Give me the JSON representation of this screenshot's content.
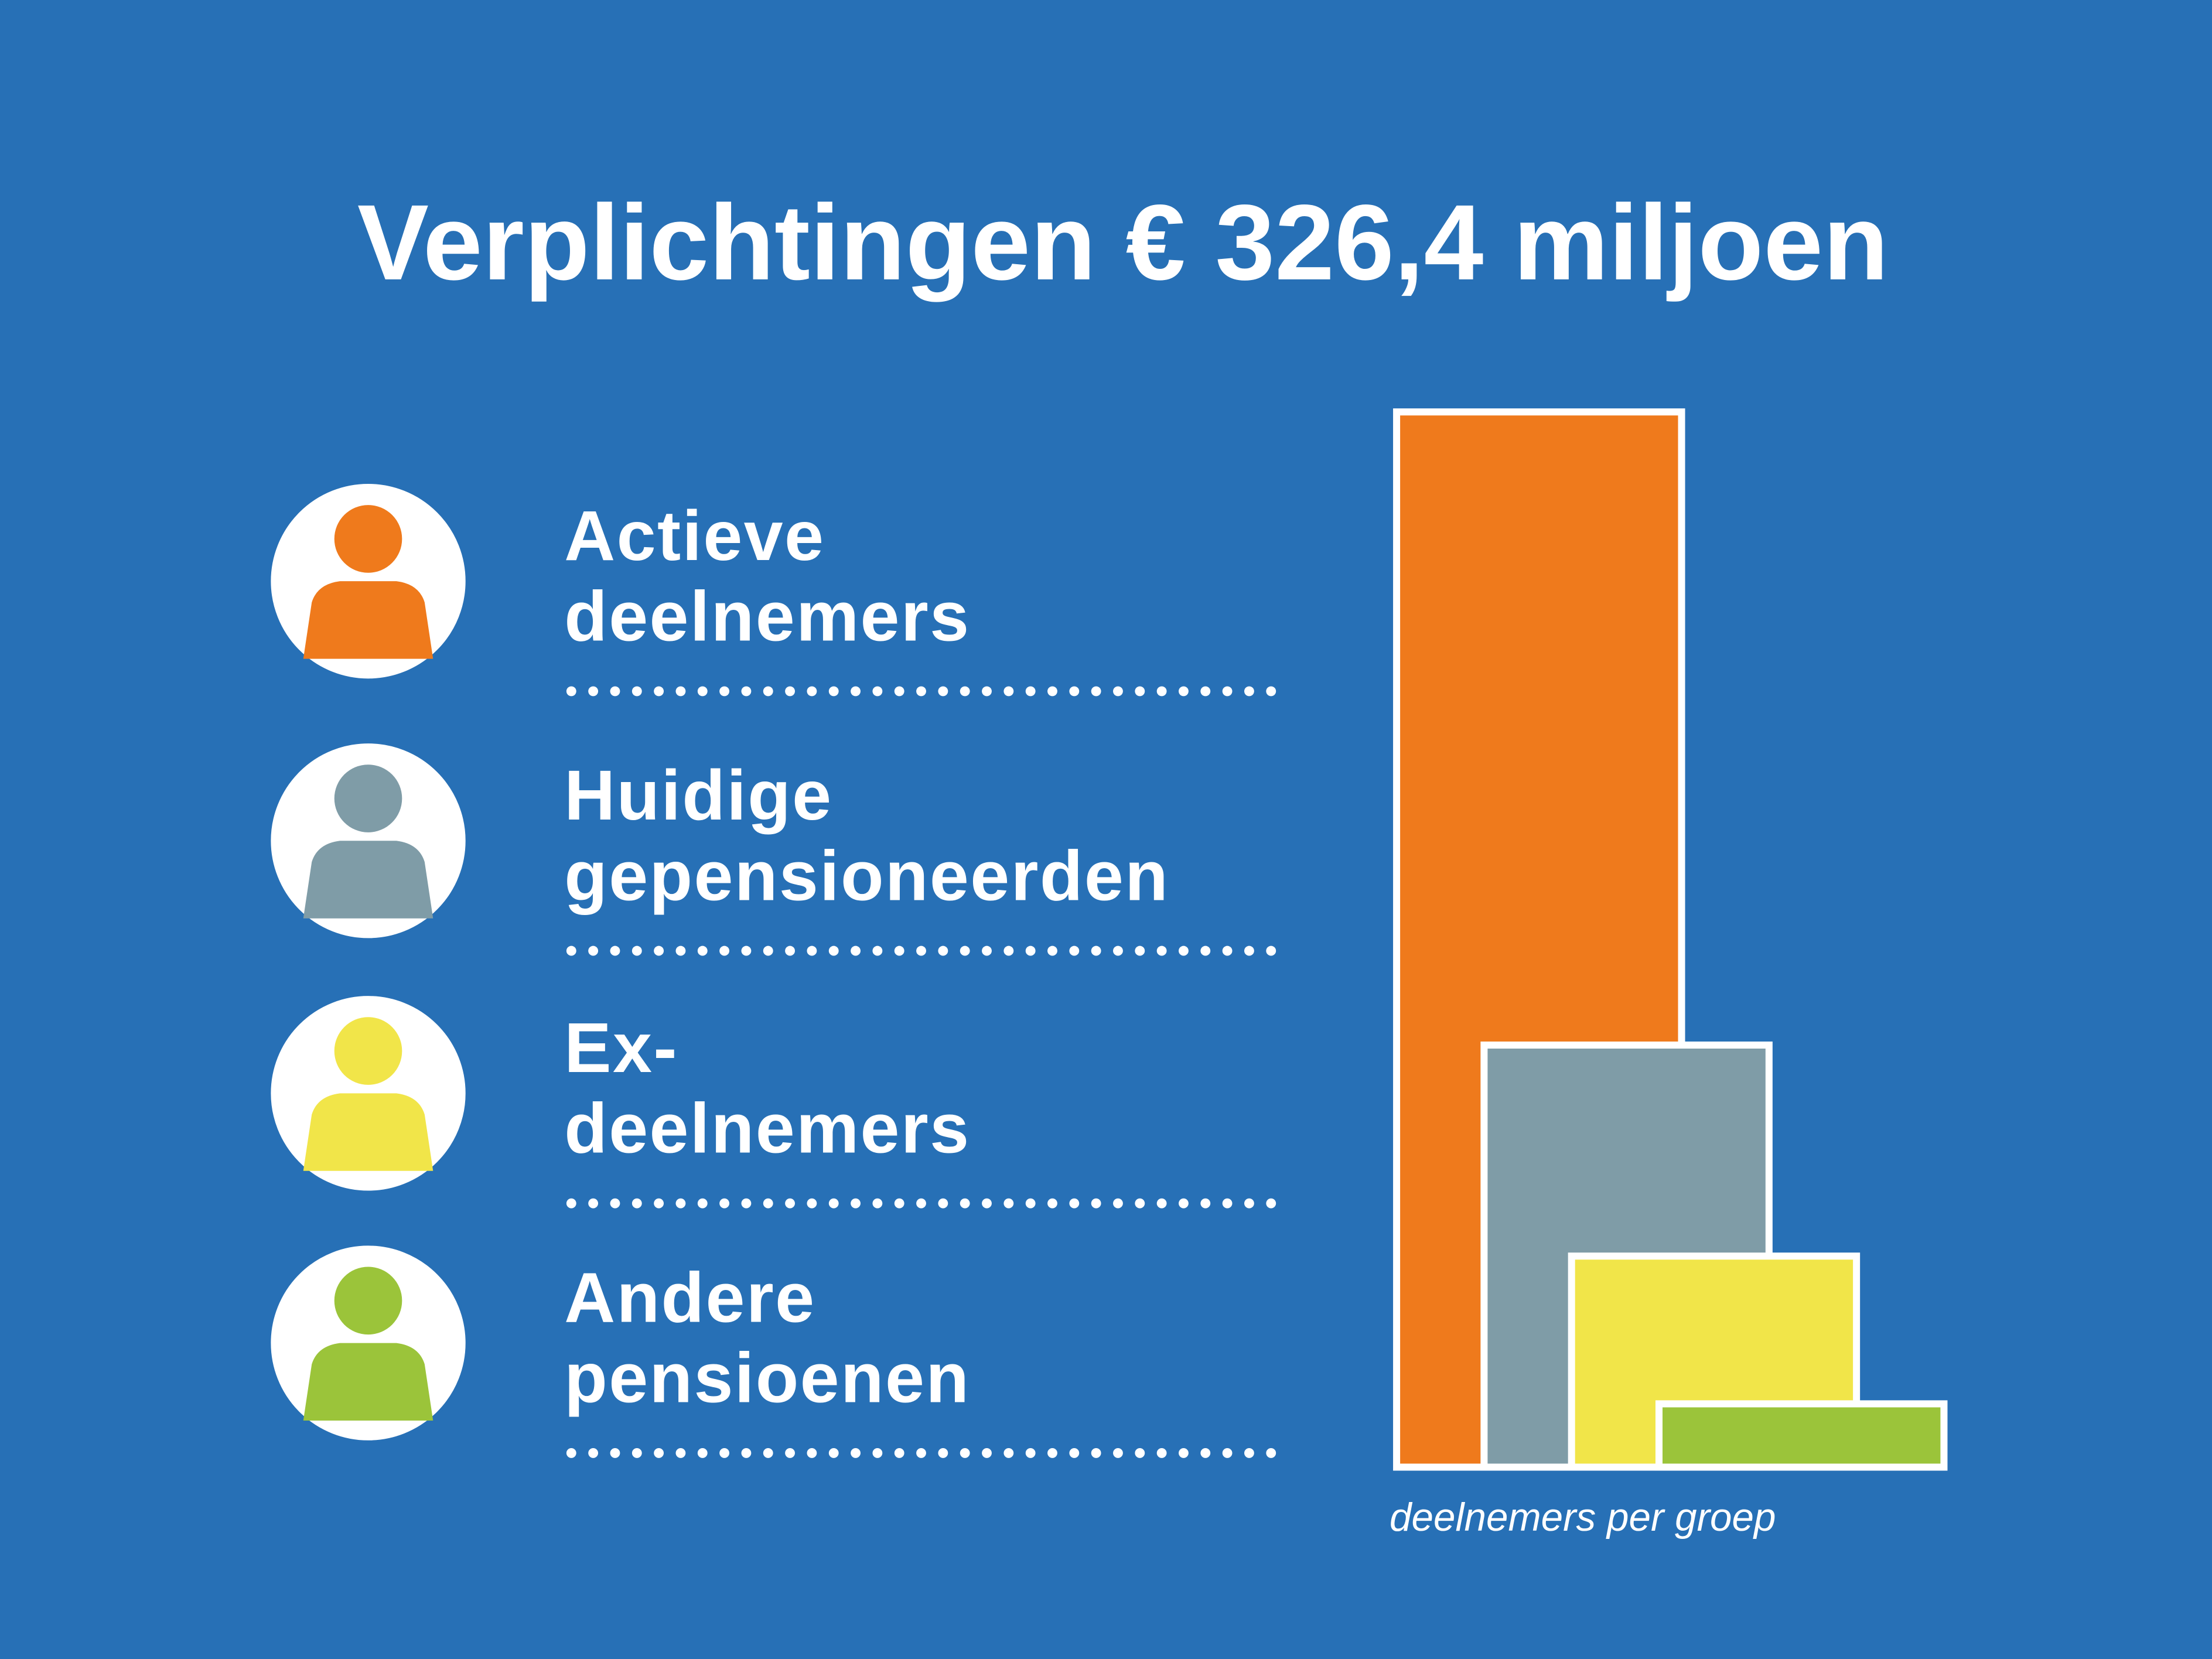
{
  "chart_data": {
    "type": "bar",
    "title": "Verplichtingen  € 326,4 miljoen",
    "categories": [
      [
        "Actieve",
        "deelnemers"
      ],
      [
        "Huidige",
        "gepensioneerden"
      ],
      [
        "Ex-",
        "deelnemers"
      ],
      [
        "Andere",
        "pensioenen"
      ]
    ],
    "values": [
      100,
      40,
      20,
      6
    ],
    "colors": [
      "#ef7a1c",
      "#7f9ca7",
      "#f1e549",
      "#9bc43a"
    ],
    "ylim": [
      0,
      100
    ],
    "x_label": "deelnemers per groep"
  }
}
